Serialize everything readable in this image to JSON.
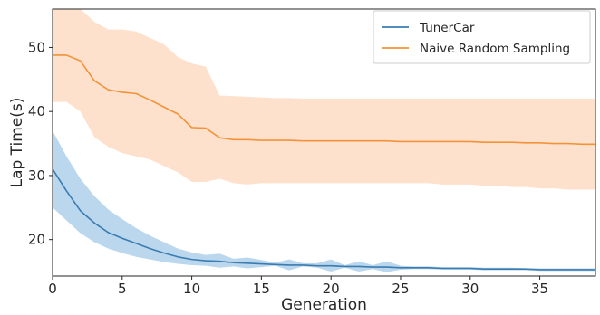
{
  "chart_data": {
    "type": "line",
    "xlabel": "Generation",
    "ylabel": "Lap Time(s)",
    "xlim": [
      0,
      39
    ],
    "ylim": [
      14.3,
      56
    ],
    "xticks": [
      0,
      5,
      10,
      15,
      20,
      25,
      30,
      35
    ],
    "yticks": [
      20,
      30,
      40,
      50
    ],
    "grid": false,
    "legend_position": "top-right",
    "series": [
      {
        "name": "TunerCar",
        "color": "#3a7bb0",
        "band_color": "#aed0ea",
        "mean": [
          [
            0,
            31.0
          ],
          [
            1,
            27.6
          ],
          [
            2,
            24.5
          ],
          [
            3,
            22.6
          ],
          [
            4,
            21.1
          ],
          [
            5,
            20.2
          ],
          [
            6,
            19.4
          ],
          [
            7,
            18.6
          ],
          [
            8,
            17.9
          ],
          [
            9,
            17.3
          ],
          [
            10,
            16.9
          ],
          [
            11,
            16.7
          ],
          [
            12,
            16.6
          ],
          [
            13,
            16.4
          ],
          [
            14,
            16.3
          ],
          [
            15,
            16.2
          ],
          [
            16,
            16.1
          ],
          [
            17,
            16.0
          ],
          [
            18,
            16.0
          ],
          [
            19,
            15.9
          ],
          [
            20,
            15.9
          ],
          [
            21,
            15.8
          ],
          [
            22,
            15.8
          ],
          [
            23,
            15.7
          ],
          [
            24,
            15.7
          ],
          [
            25,
            15.6
          ],
          [
            26,
            15.6
          ],
          [
            27,
            15.6
          ],
          [
            28,
            15.5
          ],
          [
            29,
            15.5
          ],
          [
            30,
            15.5
          ],
          [
            31,
            15.4
          ],
          [
            32,
            15.4
          ],
          [
            33,
            15.4
          ],
          [
            34,
            15.4
          ],
          [
            35,
            15.3
          ],
          [
            36,
            15.3
          ],
          [
            37,
            15.3
          ],
          [
            38,
            15.3
          ],
          [
            39,
            15.3
          ]
        ],
        "upper": [
          [
            0,
            37.0
          ],
          [
            1,
            33.0
          ],
          [
            2,
            29.5
          ],
          [
            3,
            26.8
          ],
          [
            4,
            24.7
          ],
          [
            5,
            23.2
          ],
          [
            6,
            21.8
          ],
          [
            7,
            20.6
          ],
          [
            8,
            19.6
          ],
          [
            9,
            18.6
          ],
          [
            10,
            18.0
          ],
          [
            11,
            17.6
          ],
          [
            12,
            17.8
          ],
          [
            13,
            17.0
          ],
          [
            14,
            17.2
          ],
          [
            15,
            16.8
          ],
          [
            16,
            16.4
          ],
          [
            17,
            16.9
          ],
          [
            18,
            16.3
          ],
          [
            19,
            16.3
          ],
          [
            20,
            16.9
          ],
          [
            21,
            16.0
          ],
          [
            22,
            16.6
          ],
          [
            23,
            16.0
          ],
          [
            24,
            16.6
          ],
          [
            25,
            15.9
          ],
          [
            26,
            15.8
          ],
          [
            27,
            15.8
          ],
          [
            28,
            15.7
          ],
          [
            29,
            15.7
          ],
          [
            30,
            15.7
          ],
          [
            31,
            15.6
          ],
          [
            32,
            15.6
          ],
          [
            33,
            15.6
          ],
          [
            34,
            15.5
          ],
          [
            35,
            15.5
          ],
          [
            36,
            15.5
          ],
          [
            37,
            15.5
          ],
          [
            38,
            15.5
          ],
          [
            39,
            15.5
          ]
        ],
        "lower": [
          [
            0,
            25.0
          ],
          [
            1,
            23.0
          ],
          [
            2,
            21.0
          ],
          [
            3,
            19.6
          ],
          [
            4,
            18.6
          ],
          [
            5,
            17.9
          ],
          [
            6,
            17.3
          ],
          [
            7,
            16.9
          ],
          [
            8,
            16.5
          ],
          [
            9,
            16.2
          ],
          [
            10,
            16.0
          ],
          [
            11,
            15.9
          ],
          [
            12,
            15.6
          ],
          [
            13,
            15.8
          ],
          [
            14,
            15.5
          ],
          [
            15,
            15.7
          ],
          [
            16,
            15.9
          ],
          [
            17,
            15.2
          ],
          [
            18,
            15.8
          ],
          [
            19,
            15.6
          ],
          [
            20,
            15.0
          ],
          [
            21,
            15.6
          ],
          [
            22,
            15.0
          ],
          [
            23,
            15.4
          ],
          [
            24,
            14.9
          ],
          [
            25,
            15.3
          ],
          [
            26,
            15.4
          ],
          [
            27,
            15.4
          ],
          [
            28,
            15.3
          ],
          [
            29,
            15.3
          ],
          [
            30,
            15.3
          ],
          [
            31,
            15.2
          ],
          [
            32,
            15.2
          ],
          [
            33,
            15.2
          ],
          [
            34,
            15.2
          ],
          [
            35,
            15.1
          ],
          [
            36,
            15.1
          ],
          [
            37,
            15.1
          ],
          [
            38,
            15.1
          ],
          [
            39,
            15.1
          ]
        ]
      },
      {
        "name": "Naive Random Sampling",
        "color": "#f2933a",
        "band_color": "#fddcc4",
        "mean": [
          [
            0,
            48.8
          ],
          [
            1,
            48.8
          ],
          [
            2,
            47.9
          ],
          [
            3,
            44.8
          ],
          [
            4,
            43.4
          ],
          [
            5,
            43.0
          ],
          [
            6,
            42.8
          ],
          [
            7,
            41.8
          ],
          [
            8,
            40.7
          ],
          [
            9,
            39.6
          ],
          [
            10,
            37.5
          ],
          [
            11,
            37.4
          ],
          [
            12,
            35.9
          ],
          [
            13,
            35.6
          ],
          [
            14,
            35.6
          ],
          [
            15,
            35.5
          ],
          [
            16,
            35.5
          ],
          [
            17,
            35.5
          ],
          [
            18,
            35.4
          ],
          [
            19,
            35.4
          ],
          [
            20,
            35.4
          ],
          [
            21,
            35.4
          ],
          [
            22,
            35.4
          ],
          [
            23,
            35.4
          ],
          [
            24,
            35.4
          ],
          [
            25,
            35.3
          ],
          [
            26,
            35.3
          ],
          [
            27,
            35.3
          ],
          [
            28,
            35.3
          ],
          [
            29,
            35.3
          ],
          [
            30,
            35.3
          ],
          [
            31,
            35.2
          ],
          [
            32,
            35.2
          ],
          [
            33,
            35.2
          ],
          [
            34,
            35.1
          ],
          [
            35,
            35.1
          ],
          [
            36,
            35.0
          ],
          [
            37,
            35.0
          ],
          [
            38,
            34.9
          ],
          [
            39,
            34.9
          ]
        ],
        "upper": [
          [
            0,
            56.0
          ],
          [
            1,
            56.0
          ],
          [
            2,
            56.0
          ],
          [
            3,
            54.0
          ],
          [
            4,
            52.8
          ],
          [
            5,
            52.8
          ],
          [
            6,
            52.5
          ],
          [
            7,
            51.5
          ],
          [
            8,
            50.5
          ],
          [
            9,
            48.5
          ],
          [
            10,
            47.5
          ],
          [
            11,
            47.0
          ],
          [
            12,
            42.5
          ],
          [
            13,
            42.4
          ],
          [
            14,
            42.3
          ],
          [
            15,
            42.2
          ],
          [
            16,
            42.1
          ],
          [
            17,
            42.1
          ],
          [
            18,
            42.0
          ],
          [
            19,
            42.0
          ],
          [
            20,
            42.0
          ],
          [
            21,
            42.0
          ],
          [
            22,
            42.0
          ],
          [
            23,
            42.0
          ],
          [
            24,
            42.0
          ],
          [
            25,
            42.0
          ],
          [
            26,
            42.0
          ],
          [
            27,
            42.0
          ],
          [
            28,
            42.0
          ],
          [
            29,
            42.0
          ],
          [
            30,
            42.0
          ],
          [
            31,
            42.0
          ],
          [
            32,
            42.0
          ],
          [
            33,
            42.0
          ],
          [
            34,
            42.0
          ],
          [
            35,
            42.0
          ],
          [
            36,
            42.0
          ],
          [
            37,
            42.0
          ],
          [
            38,
            42.0
          ],
          [
            39,
            42.0
          ]
        ],
        "lower": [
          [
            0,
            41.5
          ],
          [
            1,
            41.5
          ],
          [
            2,
            40.0
          ],
          [
            3,
            36.0
          ],
          [
            4,
            34.5
          ],
          [
            5,
            33.5
          ],
          [
            6,
            33.0
          ],
          [
            7,
            32.5
          ],
          [
            8,
            31.5
          ],
          [
            9,
            30.5
          ],
          [
            10,
            29.0
          ],
          [
            11,
            29.0
          ],
          [
            12,
            29.5
          ],
          [
            13,
            28.8
          ],
          [
            14,
            28.6
          ],
          [
            15,
            28.8
          ],
          [
            16,
            28.8
          ],
          [
            17,
            28.8
          ],
          [
            18,
            28.8
          ],
          [
            19,
            28.8
          ],
          [
            20,
            28.8
          ],
          [
            21,
            28.8
          ],
          [
            22,
            28.8
          ],
          [
            23,
            28.8
          ],
          [
            24,
            28.8
          ],
          [
            25,
            28.8
          ],
          [
            26,
            28.8
          ],
          [
            27,
            28.8
          ],
          [
            28,
            28.6
          ],
          [
            29,
            28.6
          ],
          [
            30,
            28.6
          ],
          [
            31,
            28.4
          ],
          [
            32,
            28.4
          ],
          [
            33,
            28.2
          ],
          [
            34,
            28.2
          ],
          [
            35,
            28.0
          ],
          [
            36,
            28.0
          ],
          [
            37,
            27.8
          ],
          [
            38,
            27.8
          ],
          [
            39,
            27.8
          ]
        ]
      }
    ]
  }
}
